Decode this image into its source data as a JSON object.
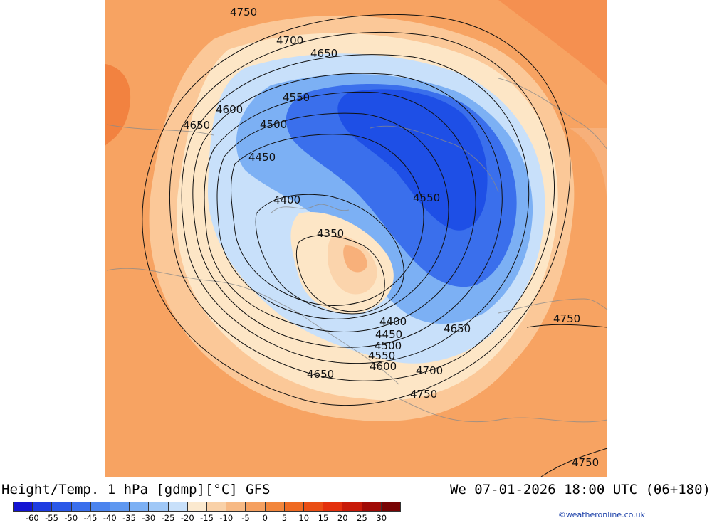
{
  "footer": {
    "title": "Height/Temp. 1 hPa [gdmp][°C] GFS",
    "datetime": "We 07-01-2026 18:00 UTC (06+180)",
    "credit": "©weatheronline.co.uk"
  },
  "colorbar": {
    "ticks": [
      "-60",
      "-55",
      "-50",
      "-45",
      "-40",
      "-35",
      "-30",
      "-25",
      "-20",
      "-15",
      "-10",
      "-5",
      "0",
      "5",
      "10",
      "15",
      "20",
      "25",
      "30"
    ],
    "colors": [
      "#1414d2",
      "#1e3ce1",
      "#2a58e8",
      "#3a6fec",
      "#4b84ee",
      "#5f98f0",
      "#7cb0f4",
      "#a0c8f7",
      "#c8e0fa",
      "#fbe9cf",
      "#f9d1a8",
      "#f7b984",
      "#f5a060",
      "#f2863c",
      "#ef6a22",
      "#ea4e14",
      "#e4300c",
      "#c81a08",
      "#a00a06",
      "#780404"
    ]
  },
  "contours": [
    {
      "label": "4750"
    },
    {
      "label": "4700"
    },
    {
      "label": "4650"
    },
    {
      "label": "4550"
    },
    {
      "label": "4600"
    },
    {
      "label": "4650"
    },
    {
      "label": "4500"
    },
    {
      "label": "4450"
    },
    {
      "label": "4400"
    },
    {
      "label": "4350"
    },
    {
      "label": "4550"
    },
    {
      "label": "4400"
    },
    {
      "label": "4450"
    },
    {
      "label": "4500"
    },
    {
      "label": "4550"
    },
    {
      "label": "4600"
    },
    {
      "label": "4650"
    },
    {
      "label": "4650"
    },
    {
      "label": "4700"
    },
    {
      "label": "4750"
    },
    {
      "label": "4750"
    },
    {
      "label": "4750"
    }
  ],
  "colors": {
    "background_orange": "#f8a868",
    "deep_blue": "#1e4fe6",
    "light_blue": "#c8e0fa",
    "warm_core": "#fde6c6"
  }
}
